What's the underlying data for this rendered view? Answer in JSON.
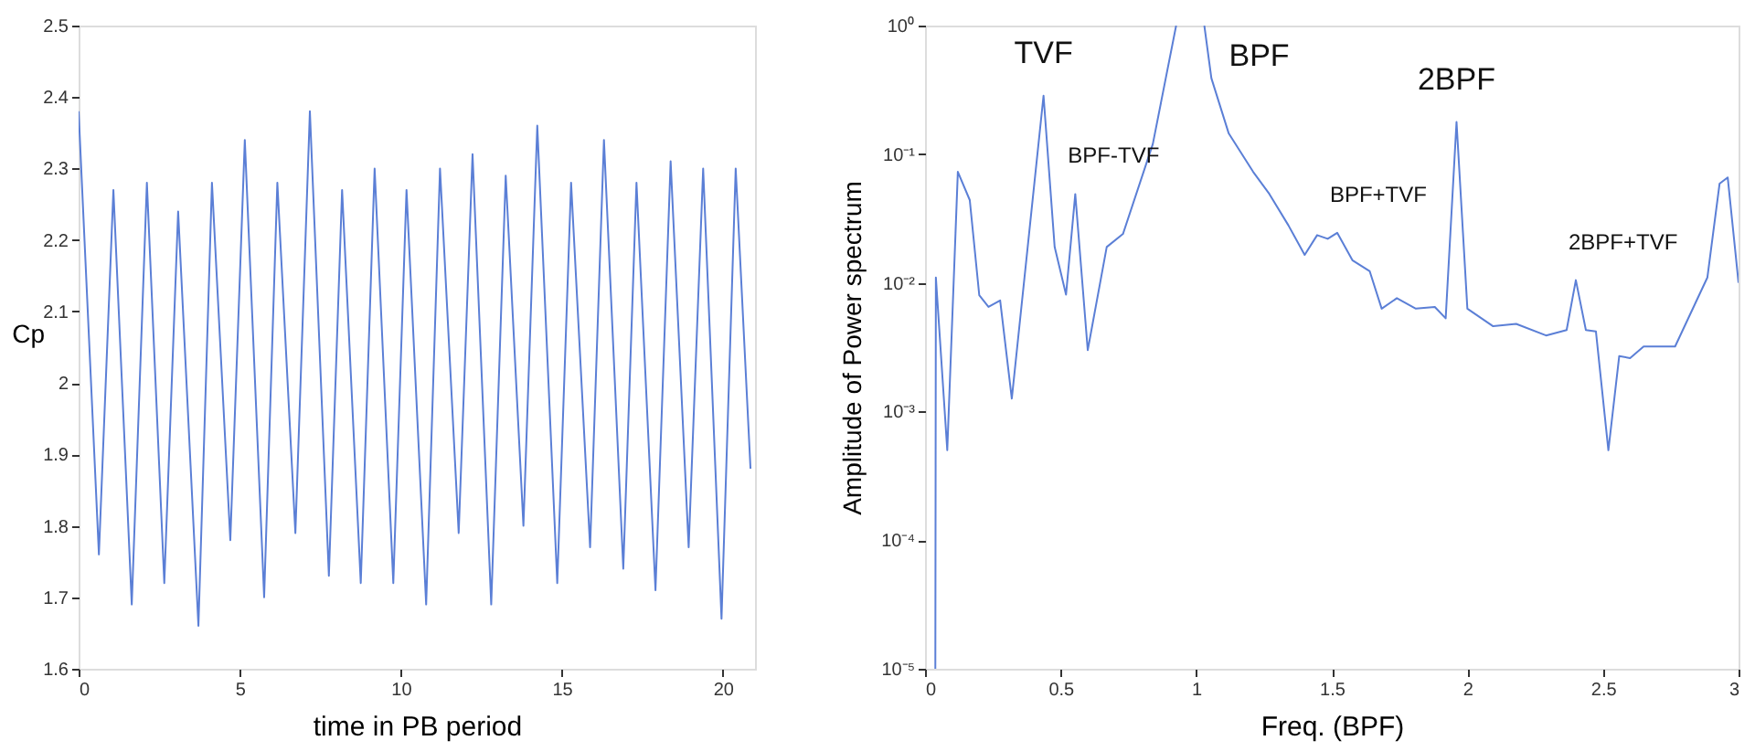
{
  "chart_data": [
    {
      "type": "line",
      "xlabel": "time in PB period",
      "ylabel": "Cp",
      "xlim": [
        0,
        21
      ],
      "ylim": [
        1.6,
        2.5
      ],
      "xticks": [
        0,
        5,
        10,
        15,
        20
      ],
      "yticks": [
        1.6,
        1.7,
        1.8,
        1.9,
        2,
        2.1,
        2.2,
        2.3,
        2.4,
        2.5
      ],
      "grid": false,
      "marker": "none",
      "line_style": "solid",
      "x": [
        0,
        0.63,
        1.08,
        1.65,
        2.12,
        2.66,
        3.09,
        3.72,
        4.14,
        4.71,
        5.16,
        5.76,
        6.17,
        6.73,
        7.18,
        7.77,
        8.18,
        8.76,
        9.19,
        9.77,
        10.18,
        10.79,
        11.22,
        11.8,
        12.23,
        12.81,
        13.26,
        13.81,
        14.24,
        14.86,
        15.29,
        15.88,
        16.31,
        16.91,
        17.32,
        17.91,
        18.38,
        18.94,
        19.39,
        19.96,
        20.4,
        20.86
      ],
      "series": [
        {
          "color": "#5b7fd6",
          "values": [
            2.38,
            1.76,
            2.27,
            1.69,
            2.28,
            1.72,
            2.24,
            1.66,
            2.28,
            1.78,
            2.34,
            1.7,
            2.28,
            1.79,
            2.38,
            1.73,
            2.27,
            1.72,
            2.3,
            1.72,
            2.27,
            1.69,
            2.3,
            1.79,
            2.32,
            1.69,
            2.29,
            1.8,
            2.36,
            1.72,
            2.28,
            1.77,
            2.34,
            1.74,
            2.28,
            1.71,
            2.31,
            1.77,
            2.3,
            1.67,
            2.3,
            1.88
          ]
        }
      ]
    },
    {
      "type": "line",
      "xlabel": "Freq. (BPF)",
      "ylabel": "Amplitude of Power spectrum",
      "log": "y",
      "xlim": [
        0,
        3
      ],
      "ylim": [
        1e-05,
        1
      ],
      "xticks": [
        0,
        0.5,
        1,
        1.5,
        2,
        2.5,
        3
      ],
      "yticks": [
        {
          "value": 1e-05,
          "label": "10⁻⁵"
        },
        {
          "value": 0.0001,
          "label": "10⁻⁴"
        },
        {
          "value": 0.001,
          "label": "10⁻³"
        },
        {
          "value": 0.01,
          "label": "10⁻²"
        },
        {
          "value": 0.1,
          "label": "10⁻¹"
        },
        {
          "value": 1,
          "label": "10⁰"
        }
      ],
      "grid": false,
      "marker": "none",
      "line_style": "solid",
      "x": [
        0.038,
        0.04,
        0.082,
        0.121,
        0.165,
        0.2,
        0.234,
        0.277,
        0.32,
        0.437,
        0.478,
        0.52,
        0.554,
        0.6,
        0.67,
        0.73,
        0.84,
        0.926,
        1.0,
        1.03,
        1.056,
        1.12,
        1.21,
        1.27,
        1.34,
        1.4,
        1.446,
        1.485,
        1.52,
        1.576,
        1.64,
        1.684,
        1.74,
        1.81,
        1.88,
        1.92,
        1.96,
        2.0,
        2.095,
        2.18,
        2.29,
        2.366,
        2.4,
        2.437,
        2.474,
        2.52,
        2.56,
        2.6,
        2.65,
        2.766,
        2.885,
        2.93,
        2.96,
        3.0
      ],
      "series": [
        {
          "color": "#5b7fd6",
          "values": [
            1e-05,
            0.011,
            0.0005,
            0.073,
            0.044,
            0.008,
            0.0065,
            0.0073,
            0.00126,
            0.285,
            0.019,
            0.0081,
            0.049,
            0.003,
            0.019,
            0.024,
            0.12,
            1,
            null,
            1,
            0.39,
            0.145,
            0.073,
            0.049,
            0.028,
            0.0165,
            0.0235,
            0.022,
            0.0245,
            0.015,
            0.0123,
            0.0063,
            0.0076,
            0.0063,
            0.0065,
            0.0053,
            0.178,
            0.0063,
            0.0046,
            0.0048,
            0.0039,
            0.0043,
            0.0105,
            0.0043,
            0.0042,
            0.0005,
            0.0027,
            0.0026,
            0.0032,
            0.0032,
            0.011,
            0.059,
            0.066,
            0.01
          ]
        }
      ],
      "annotations": [
        {
          "text": "TVF",
          "x": 0.437,
          "y": 0.285
        },
        {
          "text": "BPF-TVF",
          "x": 0.554,
          "y": 0.049
        },
        {
          "text": "BPF",
          "x": 1.03,
          "y": 1
        },
        {
          "text": "BPF+TVF",
          "x": 1.52,
          "y": 0.0245
        },
        {
          "text": "2BPF",
          "x": 1.96,
          "y": 0.178
        },
        {
          "text": "2BPF+TVF",
          "x": 2.4,
          "y": 0.0105
        }
      ]
    }
  ]
}
